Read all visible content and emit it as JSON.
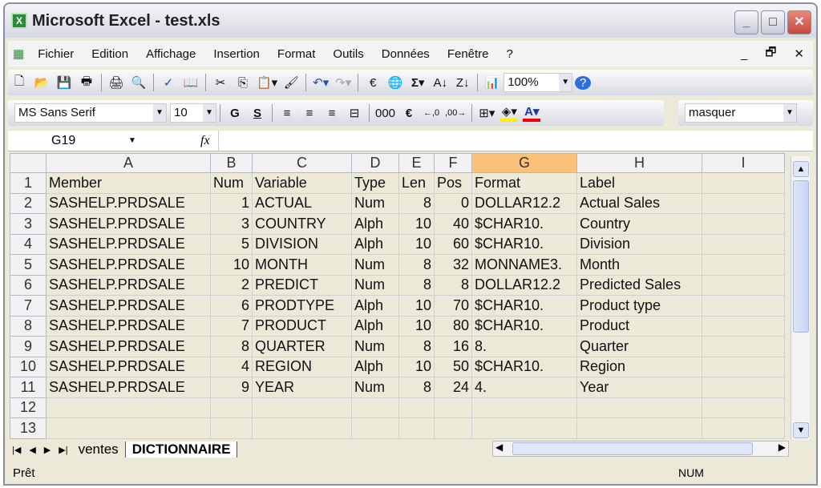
{
  "window": {
    "title": "Microsoft Excel - test.xls"
  },
  "menu": [
    "Fichier",
    "Edition",
    "Affichage",
    "Insertion",
    "Format",
    "Outils",
    "Données",
    "Fenêtre",
    "?"
  ],
  "toolbar": {
    "zoom": "100%",
    "font": "MS Sans Serif",
    "size": "10",
    "bold": "G",
    "underline": "S",
    "thousands": "000",
    "euro": "€",
    "style_box": "masquer"
  },
  "formula_bar": {
    "name_box": "G19",
    "fx": "fx",
    "value": ""
  },
  "grid": {
    "selected_column": "G",
    "columns": [
      "A",
      "B",
      "C",
      "D",
      "E",
      "F",
      "G",
      "H",
      "I"
    ],
    "rows": [
      [
        "Member",
        "Num",
        "Variable",
        "Type",
        "Len",
        "Pos",
        "Format",
        "Label",
        ""
      ],
      [
        "SASHELP.PRDSALE",
        "1",
        "ACTUAL",
        "Num",
        "8",
        "0",
        "DOLLAR12.2",
        "Actual Sales",
        ""
      ],
      [
        "SASHELP.PRDSALE",
        "3",
        "COUNTRY",
        "Alph",
        "10",
        "40",
        "$CHAR10.",
        "Country",
        ""
      ],
      [
        "SASHELP.PRDSALE",
        "5",
        "DIVISION",
        "Alph",
        "10",
        "60",
        "$CHAR10.",
        "Division",
        ""
      ],
      [
        "SASHELP.PRDSALE",
        "10",
        "MONTH",
        "Num",
        "8",
        "32",
        "MONNAME3.",
        "Month",
        ""
      ],
      [
        "SASHELP.PRDSALE",
        "2",
        "PREDICT",
        "Num",
        "8",
        "8",
        "DOLLAR12.2",
        "Predicted Sales",
        ""
      ],
      [
        "SASHELP.PRDSALE",
        "6",
        "PRODTYPE",
        "Alph",
        "10",
        "70",
        "$CHAR10.",
        "Product type",
        ""
      ],
      [
        "SASHELP.PRDSALE",
        "7",
        "PRODUCT",
        "Alph",
        "10",
        "80",
        "$CHAR10.",
        "Product",
        ""
      ],
      [
        "SASHELP.PRDSALE",
        "8",
        "QUARTER",
        "Num",
        "8",
        "16",
        "8.",
        "Quarter",
        ""
      ],
      [
        "SASHELP.PRDSALE",
        "4",
        "REGION",
        "Alph",
        "10",
        "50",
        "$CHAR10.",
        "Region",
        ""
      ],
      [
        "SASHELP.PRDSALE",
        "9",
        "YEAR",
        "Num",
        "8",
        "24",
        "4.",
        "Year",
        ""
      ],
      [
        "",
        "",
        "",
        "",
        "",
        "",
        "",
        "",
        ""
      ],
      [
        "",
        "",
        "",
        "",
        "",
        "",
        "",
        "",
        ""
      ]
    ]
  },
  "sheets": [
    "ventes",
    "DICTIONNAIRE"
  ],
  "active_sheet": "DICTIONNAIRE",
  "status": {
    "text": "Prêt",
    "num": "NUM"
  }
}
